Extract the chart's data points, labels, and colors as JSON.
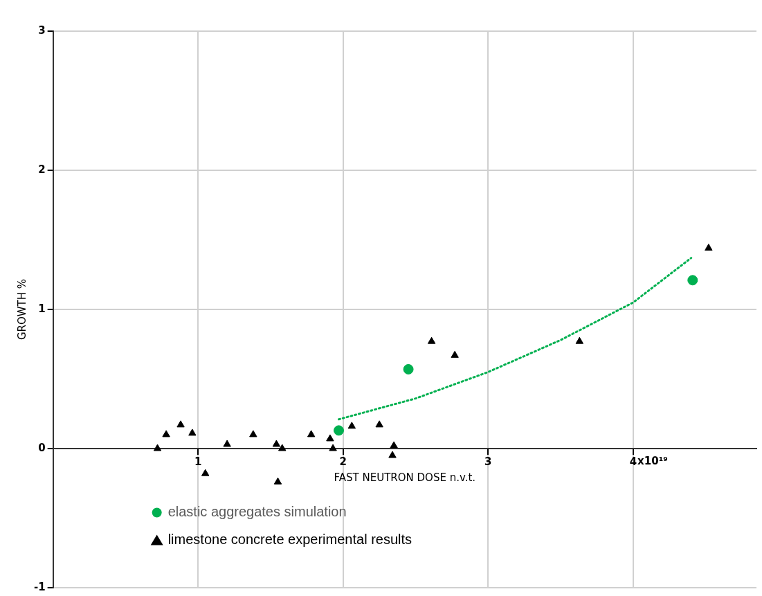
{
  "chart_data": {
    "type": "scatter",
    "xlabel": "FAST NEUTRON DOSE n.v.t.",
    "ylabel": "GROWTH %",
    "xlim": [
      0,
      4.85
    ],
    "xticks": [
      1,
      2,
      3,
      4
    ],
    "ylim": [
      -1,
      3
    ],
    "yticks": [
      -1,
      0,
      1,
      2,
      3
    ],
    "annotations": [
      "x10¹⁹"
    ],
    "grid": true,
    "legend": "bottom left",
    "series": [
      {
        "name": "elastic aggregates simulation",
        "marker": "circle",
        "color": "#00b050",
        "x": [
          1.97,
          2.45,
          4.41
        ],
        "values": [
          0.13,
          0.57,
          1.21
        ]
      },
      {
        "name": "limestone concrete experimental results",
        "marker": "triangle",
        "color": "#000000",
        "x": [
          0.72,
          0.78,
          0.88,
          0.96,
          1.05,
          1.2,
          1.38,
          1.54,
          1.55,
          1.58,
          1.78,
          1.91,
          1.93,
          2.06,
          2.25,
          2.34,
          2.35,
          2.61,
          2.77,
          3.63,
          4.52
        ],
        "values": [
          0.0,
          0.1,
          0.17,
          0.11,
          -0.18,
          0.03,
          0.1,
          0.03,
          -0.24,
          0.0,
          0.1,
          0.07,
          0.0,
          0.16,
          0.17,
          -0.05,
          0.02,
          0.77,
          0.67,
          0.77,
          1.44
        ]
      },
      {
        "type": "line",
        "line_style": "dotted",
        "marker": "none",
        "color": "#00b050",
        "x": [
          1.97,
          2.5,
          3,
          3.5,
          4,
          4.4
        ],
        "values": [
          0.21,
          0.36,
          0.55,
          0.78,
          1.05,
          1.37
        ]
      }
    ]
  }
}
